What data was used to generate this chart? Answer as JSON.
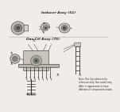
{
  "bg_color": "#f0ede8",
  "text_color": "#222222",
  "section1_label": "Inducer Assy (51)",
  "section2_label": "Gas Ctl Assy (75)",
  "note_text": "Note: This illustration is for\nreference only. Your model may\ndiffer in appearance or have\ndifferent oil components shown."
}
